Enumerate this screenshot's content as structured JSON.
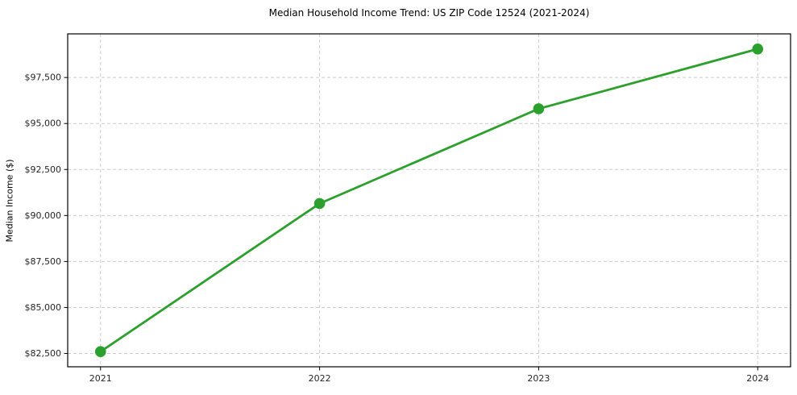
{
  "chart_data": {
    "type": "line",
    "title": "Median Household Income Trend: US ZIP Code 12524 (2021-2024)",
    "xlabel": "",
    "ylabel": "Median Income ($)",
    "x": [
      2021,
      2022,
      2023,
      2024
    ],
    "series": [
      {
        "name": "Median household income",
        "values": [
          82600,
          90650,
          95800,
          99050
        ]
      }
    ],
    "x_tick_labels": [
      "2021",
      "2022",
      "2023",
      "2024"
    ],
    "y_ticks": [
      82500,
      85000,
      87500,
      90000,
      92500,
      95000,
      97500
    ],
    "y_tick_labels": [
      "$82,500",
      "$85,000",
      "$87,500",
      "$90,000",
      "$92,500",
      "$95,000",
      "$97,500"
    ],
    "xlim": [
      2020.85,
      2024.15
    ],
    "ylim": [
      81777,
      99873
    ],
    "grid": true,
    "grid_style": "dashed",
    "legend_position": "none",
    "line_color": "#2ca02c",
    "marker": "circle",
    "grid_color": "#cccccc",
    "axis_color": "#000000",
    "text_color": "#262626",
    "background": "#ffffff"
  }
}
